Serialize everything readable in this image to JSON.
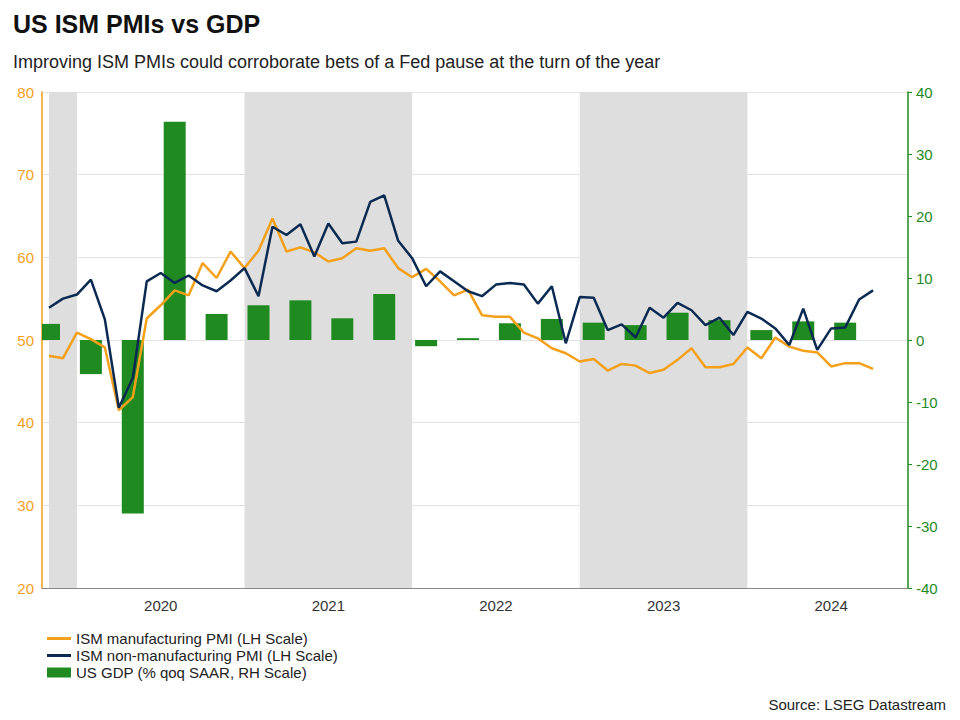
{
  "chart_data": {
    "type": "line",
    "title": "US ISM PMIs vs GDP",
    "subtitle": "Improving ISM PMIs could corroborate bets of a Fed pause at the turn of the year",
    "source": "Source: LSEG Datastream",
    "categories": [
      null,
      null,
      null,
      null,
      null,
      null,
      null,
      null,
      "2020",
      null,
      null,
      null,
      null,
      null,
      null,
      null,
      null,
      null,
      null,
      null,
      "2021",
      null,
      null,
      null,
      null,
      null,
      null,
      null,
      null,
      null,
      null,
      null,
      "2022",
      null,
      null,
      null,
      null,
      null,
      null,
      null,
      null,
      null,
      null,
      null,
      "2023",
      null,
      null,
      null,
      null,
      null,
      null,
      null,
      null,
      null,
      null,
      null,
      "2024",
      null,
      null,
      null,
      null,
      null
    ],
    "ylim": [
      20,
      80
    ],
    "yticks": [
      20,
      30,
      40,
      50,
      60,
      70,
      80
    ],
    "y2lim": [
      -40,
      40
    ],
    "y2ticks": [
      -40,
      -30,
      -20,
      -10,
      0,
      10,
      20,
      30,
      40
    ],
    "grid": true,
    "legend": "bottom-left",
    "series": [
      {
        "name": "ISM manufacturing PMI (LH Scale)",
        "type": "line",
        "color": "#f5a01a",
        "values": [
          48.1,
          47.8,
          50.9,
          50.1,
          49.1,
          41.5,
          43.1,
          52.6,
          54.2,
          56.0,
          55.4,
          59.3,
          57.5,
          60.7,
          58.7,
          60.8,
          64.7,
          60.7,
          61.2,
          60.6,
          59.5,
          59.9,
          61.1,
          60.8,
          61.1,
          58.7,
          57.6,
          58.6,
          57.1,
          55.4,
          56.1,
          53.0,
          52.8,
          52.8,
          50.9,
          50.2,
          49.0,
          48.4,
          47.4,
          47.7,
          46.3,
          47.1,
          46.9,
          46.0,
          46.4,
          47.6,
          49.0,
          46.7,
          46.7,
          47.1,
          49.1,
          47.8,
          50.3,
          49.2,
          48.7,
          48.5,
          46.8,
          47.2,
          47.2,
          46.5,
          null,
          null
        ]
      },
      {
        "name": "ISM non-manufacturing PMI (LH Scale)",
        "type": "line",
        "color": "#0b2a52",
        "values": [
          53.9,
          55.0,
          55.5,
          57.3,
          52.5,
          41.8,
          45.4,
          57.1,
          58.1,
          56.9,
          57.8,
          56.6,
          55.9,
          57.2,
          58.7,
          55.3,
          63.7,
          62.7,
          64.0,
          60.1,
          64.1,
          61.7,
          61.9,
          66.7,
          67.5,
          62.0,
          59.9,
          56.5,
          58.3,
          57.1,
          55.9,
          55.3,
          56.7,
          56.9,
          56.7,
          54.4,
          56.5,
          49.6,
          55.2,
          55.1,
          51.2,
          51.9,
          50.3,
          53.9,
          52.7,
          54.5,
          53.6,
          51.8,
          52.7,
          50.6,
          53.4,
          52.6,
          51.4,
          49.4,
          53.8,
          48.8,
          51.4,
          51.5,
          54.9,
          56.0,
          null,
          null
        ]
      },
      {
        "name": "US GDP (% qoq SAAR, RH Scale)",
        "type": "bar",
        "color": "#1f8a1f",
        "axis": "y2",
        "values": [
          2.6,
          null,
          null,
          -5.5,
          null,
          null,
          -28.0,
          null,
          null,
          35.2,
          null,
          null,
          4.2,
          null,
          null,
          5.6,
          null,
          null,
          6.4,
          null,
          null,
          3.5,
          null,
          null,
          7.4,
          null,
          null,
          -1.0,
          null,
          null,
          0.3,
          null,
          null,
          2.7,
          null,
          null,
          3.4,
          null,
          null,
          2.8,
          null,
          null,
          2.4,
          null,
          null,
          4.4,
          null,
          null,
          3.2,
          null,
          null,
          1.6,
          null,
          null,
          3.0,
          null,
          null,
          2.8,
          null,
          null,
          null,
          null
        ]
      }
    ]
  }
}
